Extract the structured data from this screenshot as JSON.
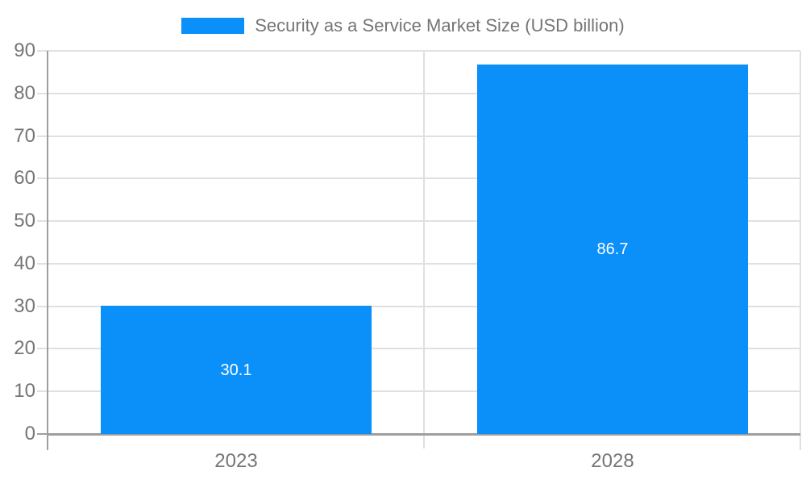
{
  "chart_data": {
    "type": "bar",
    "title": "Security as a Service Market Size (USD billion)",
    "categories": [
      "2023",
      "2028"
    ],
    "values": [
      30.1,
      86.7
    ],
    "value_labels": [
      "30.1",
      "86.7"
    ],
    "ylim": [
      0,
      90
    ],
    "yticks": [
      0,
      10,
      20,
      30,
      40,
      50,
      60,
      70,
      80,
      90
    ],
    "ytick_labels": [
      "0",
      "10",
      "20",
      "30",
      "40",
      "50",
      "60",
      "70",
      "80",
      "90"
    ],
    "grid": true,
    "legend_position": "top-center",
    "bar_color": "#0b8ff9",
    "colors": {
      "grid": "#e0e0e0",
      "axis": "#9e9e9e",
      "tick_label": "#757575",
      "legend_text": "#757575",
      "value_label": "#ffffff",
      "background": "#ffffff"
    }
  }
}
